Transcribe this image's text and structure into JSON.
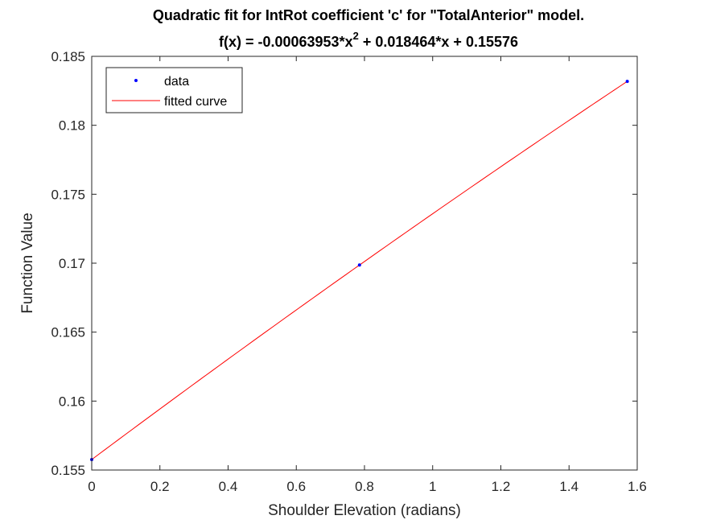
{
  "chart_data": {
    "type": "line",
    "title_line1": "Quadratic fit for IntRot coefficient 'c' for \"TotalAnterior\" model.",
    "title_line2_prefix": "f(x) = -0.00063953*x",
    "title_line2_exponent": "2",
    "title_line2_suffix": " + 0.018464*x + 0.15576",
    "xlabel": "Shoulder Elevation (radians)",
    "ylabel": "Function Value",
    "xlim": [
      0,
      1.6
    ],
    "ylim": [
      0.155,
      0.185
    ],
    "xticks": [
      0,
      0.2,
      0.4,
      0.6,
      0.8,
      1,
      1.2,
      1.4,
      1.6
    ],
    "xtick_labels": [
      "0",
      "0.2",
      "0.4",
      "0.6",
      "0.8",
      "1",
      "1.2",
      "1.4",
      "1.6"
    ],
    "yticks": [
      0.155,
      0.16,
      0.165,
      0.17,
      0.175,
      0.18,
      0.185
    ],
    "ytick_labels": [
      "0.155",
      "0.16",
      "0.165",
      "0.17",
      "0.175",
      "0.18",
      "0.185"
    ],
    "grid": false,
    "legend_position": "top-left",
    "fit_coefficients": {
      "a": -0.00063953,
      "b": 0.018464,
      "c": 0.15576
    },
    "series": [
      {
        "name": "data",
        "kind": "points",
        "color": "#0000ff",
        "x": [
          0,
          0.7854,
          1.5708
        ],
        "y": [
          0.15576,
          0.16987,
          0.18318
        ]
      },
      {
        "name": "fitted curve",
        "kind": "line",
        "color": "#ff0000",
        "x_range": [
          0,
          1.5708
        ]
      }
    ]
  }
}
